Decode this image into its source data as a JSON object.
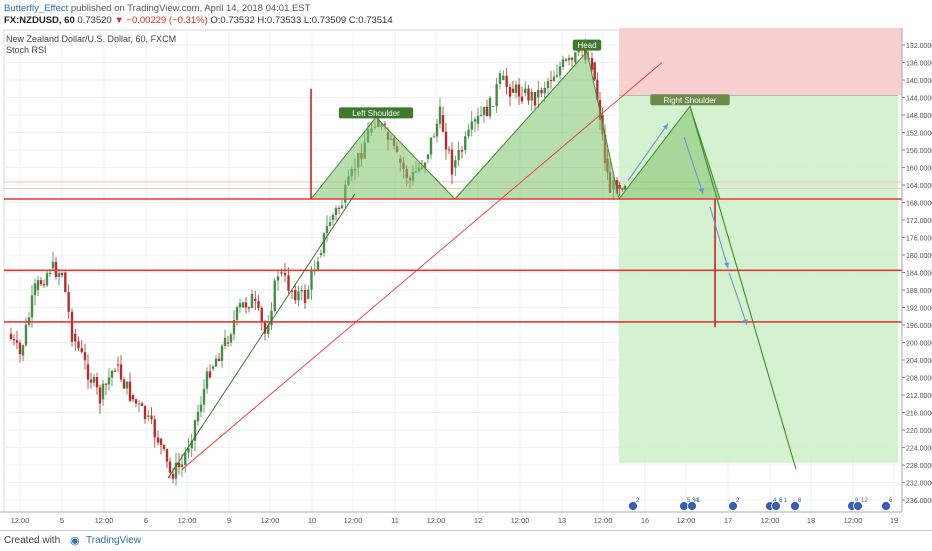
{
  "header": {
    "author": "Butterfly_Effect",
    "published": "published on TradingView.com, April 14, 2018 04:01 EST",
    "symbol": "FX:NZDUSD, 60",
    "last": "0.73520",
    "change": "−0.00229 (−0.31%)",
    "ohlc": "O:0.73532 H:0.73533 L:0.73509 C:0.73514"
  },
  "legend": {
    "title": "New Zealand Dollar/U.S. Dollar, 60, FXCM",
    "indicator": "Stoch RSI"
  },
  "footer": {
    "created_with": "Created with",
    "brand": "TradingView"
  },
  "colors": {
    "up": "#4a8a4a",
    "down": "#b03030",
    "pattern_fill": "#7fc36b",
    "pattern_line": "#3d8a2e",
    "resistance": "#e53935",
    "target_zone": "#cdeec8",
    "stop_zone": "#f8c8c8",
    "arrow": "#6a96c8"
  },
  "chart_data": {
    "type": "candlestick",
    "x_ticks": [
      "12:00",
      "5",
      "12:00",
      "6",
      "12:00",
      "9",
      "12:00",
      "10",
      "12:00",
      "11",
      "12:00",
      "12",
      "12:00",
      "13",
      "12:00",
      "16",
      "12:00",
      "17",
      "12:00",
      "18",
      "12:00",
      "19"
    ],
    "y_ticks": [
      "132.0000",
      "136.0000",
      "140.0000",
      "144.0000",
      "148.0000",
      "152.0000",
      "156.0000",
      "160.0000",
      "164.0000",
      "168.0000",
      "172.0000",
      "176.0000",
      "180.0000",
      "184.0000",
      "188.0000",
      "192.0000",
      "196.0000",
      "200.0000",
      "204.0000",
      "208.0000",
      "212.0000",
      "216.0000",
      "220.0000",
      "224.0000",
      "228.0000",
      "232.0000",
      "236.0000"
    ],
    "ylim": [
      130,
      238
    ],
    "y_inverted": true,
    "annotations": [
      {
        "label": "Left Shoulder",
        "kind": "peak",
        "x": "10 18:00",
        "y": 149
      },
      {
        "label": "Head",
        "kind": "peak",
        "x": "13 06:00",
        "y": 133.5
      },
      {
        "label": "Right Shoulder",
        "kind": "projected",
        "x": "16 10:00",
        "y": 146
      }
    ],
    "neckline": 167.2,
    "horizontal_levels": [
      167.2,
      183.5,
      195.3
    ],
    "events": [
      {
        "label": "2",
        "x": "16"
      },
      {
        "label": "5 3 1",
        "x": "16 12:00"
      },
      {
        "label": "4",
        "x": "16 12:00"
      },
      {
        "label": "2",
        "x": "17"
      },
      {
        "label": "4",
        "x": "17 12:00"
      },
      {
        "label": "6 1",
        "x": "17 12:00"
      },
      {
        "label": "8",
        "x": "18"
      },
      {
        "label": "9",
        "x": "18 12:00"
      },
      {
        "label": "12",
        "x": "19"
      },
      {
        "label": "6",
        "x": "19 12:00"
      }
    ]
  }
}
